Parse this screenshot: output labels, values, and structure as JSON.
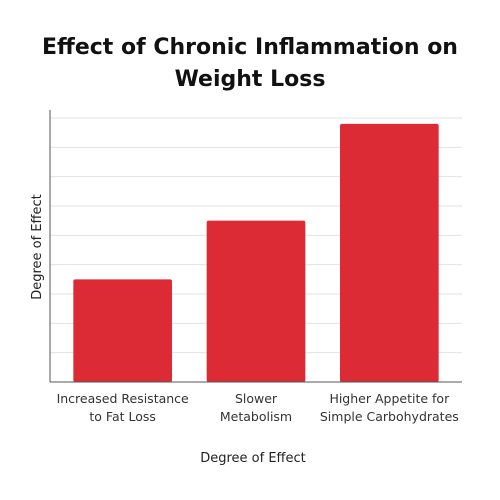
{
  "chart_data": {
    "type": "bar",
    "title": "Effect of Chronic Inflammation on Weight Loss",
    "xlabel": "Degree of Effect",
    "ylabel": "Degree of Effect",
    "categories": [
      [
        "Increased Resistance",
        "to Fat Loss"
      ],
      [
        "Slower",
        "Metabolism"
      ],
      [
        "Higher Appetite for",
        "Simple Carbohydrates"
      ]
    ],
    "values": [
      3.5,
      5.5,
      8.8
    ],
    "ylim": [
      0,
      9
    ],
    "grid": true,
    "colors": {
      "bar": "#dc2b35",
      "grid": "#e2e2e2",
      "axis": "#555555"
    }
  }
}
